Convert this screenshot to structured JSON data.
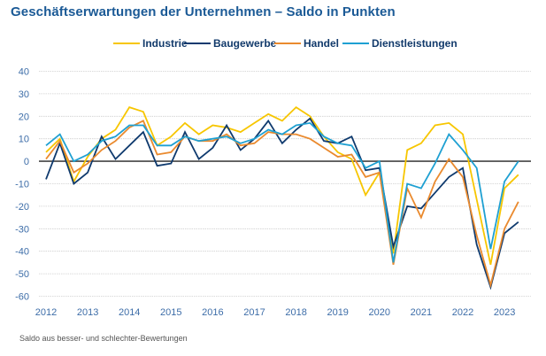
{
  "title": "Geschäftserwartungen der Unternehmen – Saldo in Punkten",
  "footnote": "Saldo aus besser- und schlechter-Bewertungen",
  "chart_data": {
    "type": "line",
    "title": "Geschäftserwartungen der Unternehmen – Saldo in Punkten",
    "xlabel": "",
    "ylabel": "",
    "ylim": [
      -60,
      40
    ],
    "yticks": [
      40,
      30,
      20,
      10,
      0,
      -10,
      -20,
      -30,
      -40,
      -50,
      -60
    ],
    "xtick_labels": [
      "2012",
      "2013",
      "2014",
      "2015",
      "2016",
      "2017",
      "2018",
      "2019",
      "2020",
      "2021",
      "2022",
      "2023"
    ],
    "points_per_year": 3,
    "grid": true,
    "zero_line": true,
    "legend_position": "top",
    "series": [
      {
        "name": "Industrie",
        "color": "#f7c600",
        "values": [
          4,
          10,
          -9,
          2,
          10,
          14,
          24,
          22,
          7,
          11,
          17,
          12,
          16,
          15,
          13,
          17,
          21,
          18,
          24,
          20,
          11,
          4,
          1,
          -15,
          -5,
          -41,
          5,
          8,
          16,
          17,
          12,
          -17,
          -46,
          -12,
          -6
        ]
      },
      {
        "name": "Baugewerbe",
        "color": "#0f3a6e",
        "values": [
          -8,
          8,
          -10,
          -5,
          11,
          1,
          7,
          13,
          -2,
          -1,
          13,
          1,
          6,
          16,
          5,
          10,
          18,
          8,
          14,
          19,
          9,
          8,
          11,
          -4,
          -3,
          -38,
          -20,
          -21,
          -14,
          -7,
          -3,
          -37,
          -56,
          -32,
          -27
        ]
      },
      {
        "name": "Handel",
        "color": "#ea8a2e",
        "values": [
          1,
          9,
          -5,
          -1,
          5,
          9,
          15,
          18,
          3,
          4,
          11,
          9,
          9,
          12,
          7,
          8,
          13,
          12,
          12,
          10,
          6,
          2,
          3,
          -7,
          -5,
          -46,
          -12,
          -25,
          -9,
          1,
          -7,
          -33,
          -55,
          -30,
          -18
        ]
      },
      {
        "name": "Dienstleistungen",
        "color": "#1ea0d2",
        "values": [
          7,
          12,
          0,
          3,
          9,
          11,
          16,
          16,
          7,
          7,
          11,
          9,
          10,
          11,
          8,
          10,
          14,
          12,
          16,
          17,
          11,
          8,
          7,
          -3,
          0,
          -45,
          -10,
          -12,
          -1,
          12,
          5,
          -3,
          -39,
          -9,
          0
        ]
      }
    ]
  }
}
